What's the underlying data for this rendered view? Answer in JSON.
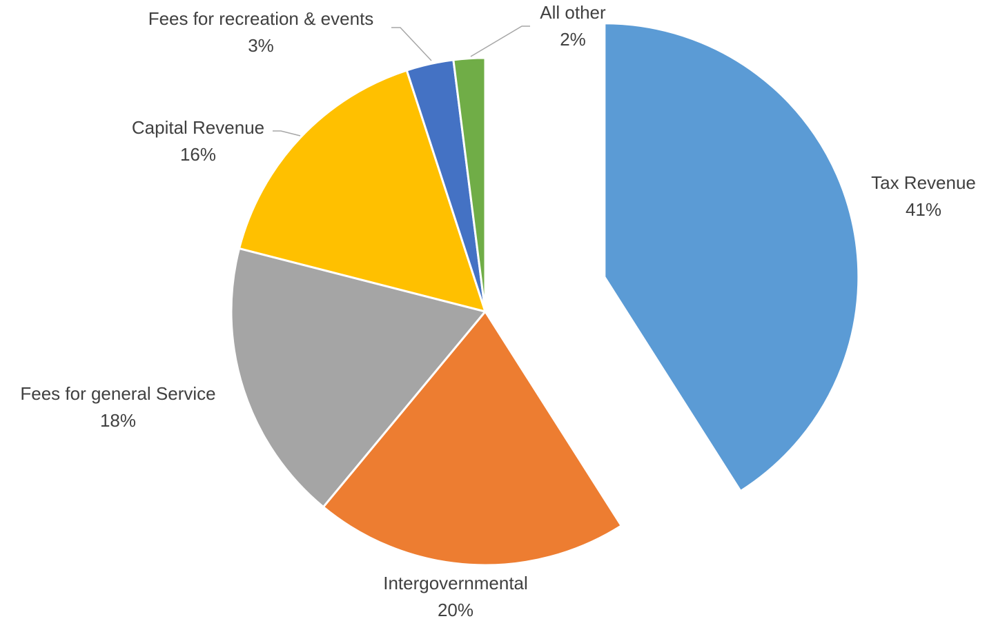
{
  "chart_data": {
    "type": "pie",
    "categories": [
      "Tax Revenue",
      "Intergovernmental",
      "Fees for general Service",
      "Capital Revenue",
      "Fees for recreation & events",
      "All other"
    ],
    "values": [
      41,
      20,
      18,
      16,
      3,
      2
    ],
    "value_labels": [
      "41%",
      "20%",
      "18%",
      "16%",
      "3%",
      "2%"
    ],
    "colors": [
      "#5b9bd5",
      "#ed7d31",
      "#a5a5a5",
      "#ffc000",
      "#4472c4",
      "#70ad47"
    ],
    "exploded": [
      0
    ]
  }
}
